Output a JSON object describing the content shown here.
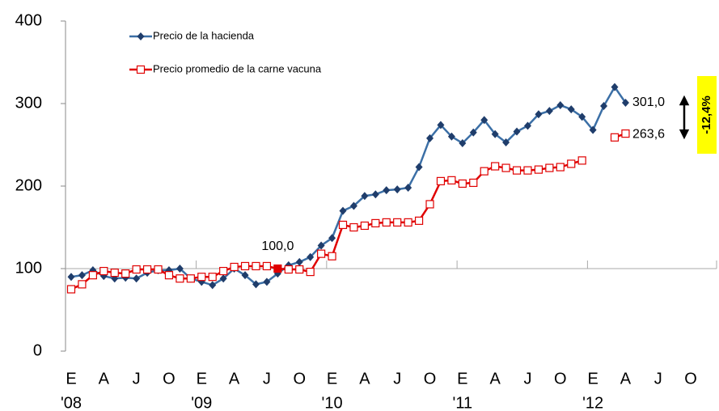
{
  "chart_data": {
    "type": "line",
    "categories": [
      "E",
      null,
      null,
      "A",
      null,
      null,
      "J",
      null,
      null,
      "O",
      null,
      null,
      "E",
      null,
      null,
      "A",
      null,
      null,
      "J",
      null,
      null,
      "O",
      null,
      null,
      "E",
      null,
      null,
      "A",
      null,
      null,
      "J",
      null,
      null,
      "O",
      null,
      null,
      "E",
      null,
      null,
      "A",
      null,
      null,
      "J",
      null,
      null,
      "O",
      null,
      null,
      "E",
      null,
      null,
      "A",
      null,
      null,
      "J",
      null,
      null,
      "O"
    ],
    "category_years": [
      "'08",
      null,
      null,
      null,
      null,
      null,
      null,
      null,
      null,
      null,
      null,
      null,
      "'09",
      null,
      null,
      null,
      null,
      null,
      null,
      null,
      null,
      null,
      null,
      null,
      "'10",
      null,
      null,
      null,
      null,
      null,
      null,
      null,
      null,
      null,
      null,
      null,
      "'11",
      null,
      null,
      null,
      null,
      null,
      null,
      null,
      null,
      null,
      null,
      null,
      "'12",
      null,
      null,
      null,
      null,
      null,
      null,
      null,
      null,
      null
    ],
    "series": [
      {
        "name": "Precio de la hacienda",
        "color": "#3b6fa6",
        "marker_color": "#1f3d6b",
        "marker": "diamond",
        "values": [
          90,
          92,
          98,
          91,
          88,
          89,
          88,
          95,
          98,
          98,
          100,
          88,
          84,
          80,
          88,
          100,
          92,
          81,
          84,
          94,
          104,
          108,
          114,
          128,
          137,
          170,
          176,
          188,
          190,
          195,
          196,
          198,
          223,
          258,
          274,
          260,
          252,
          265,
          280,
          263,
          253,
          266,
          273,
          287,
          291,
          298,
          293,
          284,
          268,
          297,
          320,
          301,
          null,
          null,
          null,
          null,
          null,
          null
        ],
        "value_labels": [
          null,
          null,
          null,
          null,
          null,
          null,
          null,
          null,
          null,
          null,
          null,
          null,
          null,
          null,
          null,
          null,
          null,
          null,
          null,
          null,
          null,
          null,
          null,
          null,
          null,
          null,
          null,
          null,
          null,
          null,
          null,
          null,
          null,
          null,
          null,
          null,
          null,
          null,
          null,
          null,
          null,
          null,
          null,
          null,
          null,
          null,
          null,
          null,
          null,
          null,
          null,
          "301,0",
          null,
          null,
          null,
          null,
          null,
          null
        ]
      },
      {
        "name": "Precio promedio de la carne vacuna",
        "color": "#e00000",
        "marker_color": "#e00000",
        "marker": "square",
        "values": [
          75,
          81,
          92,
          97,
          95,
          94,
          99,
          99,
          99,
          92,
          88,
          88,
          90,
          90,
          97,
          102,
          103,
          103,
          103,
          100,
          99,
          99,
          96,
          118,
          115,
          153,
          150,
          152,
          155,
          156,
          156,
          156,
          158,
          178,
          206,
          207,
          203,
          204,
          218,
          224,
          222,
          219,
          219,
          220,
          222,
          223,
          227,
          231,
          null,
          null,
          259,
          263.6,
          null,
          null,
          null,
          null,
          null,
          null
        ],
        "value_labels": [
          null,
          null,
          null,
          null,
          null,
          null,
          null,
          null,
          null,
          null,
          null,
          null,
          null,
          null,
          null,
          null,
          null,
          null,
          null,
          "100,0",
          null,
          null,
          null,
          null,
          null,
          null,
          null,
          null,
          null,
          null,
          null,
          null,
          null,
          null,
          null,
          null,
          null,
          null,
          null,
          null,
          null,
          null,
          null,
          null,
          null,
          null,
          null,
          null,
          null,
          null,
          null,
          "263,6",
          null,
          null,
          null,
          null,
          null,
          null
        ]
      }
    ],
    "ylim": [
      0,
      400
    ],
    "yticks": [
      0,
      100,
      200,
      300,
      400
    ],
    "x_axis_at": 100,
    "legend": "upper left",
    "annotations": [
      {
        "text": "-12,4%",
        "background": "#ffff00"
      }
    ]
  }
}
